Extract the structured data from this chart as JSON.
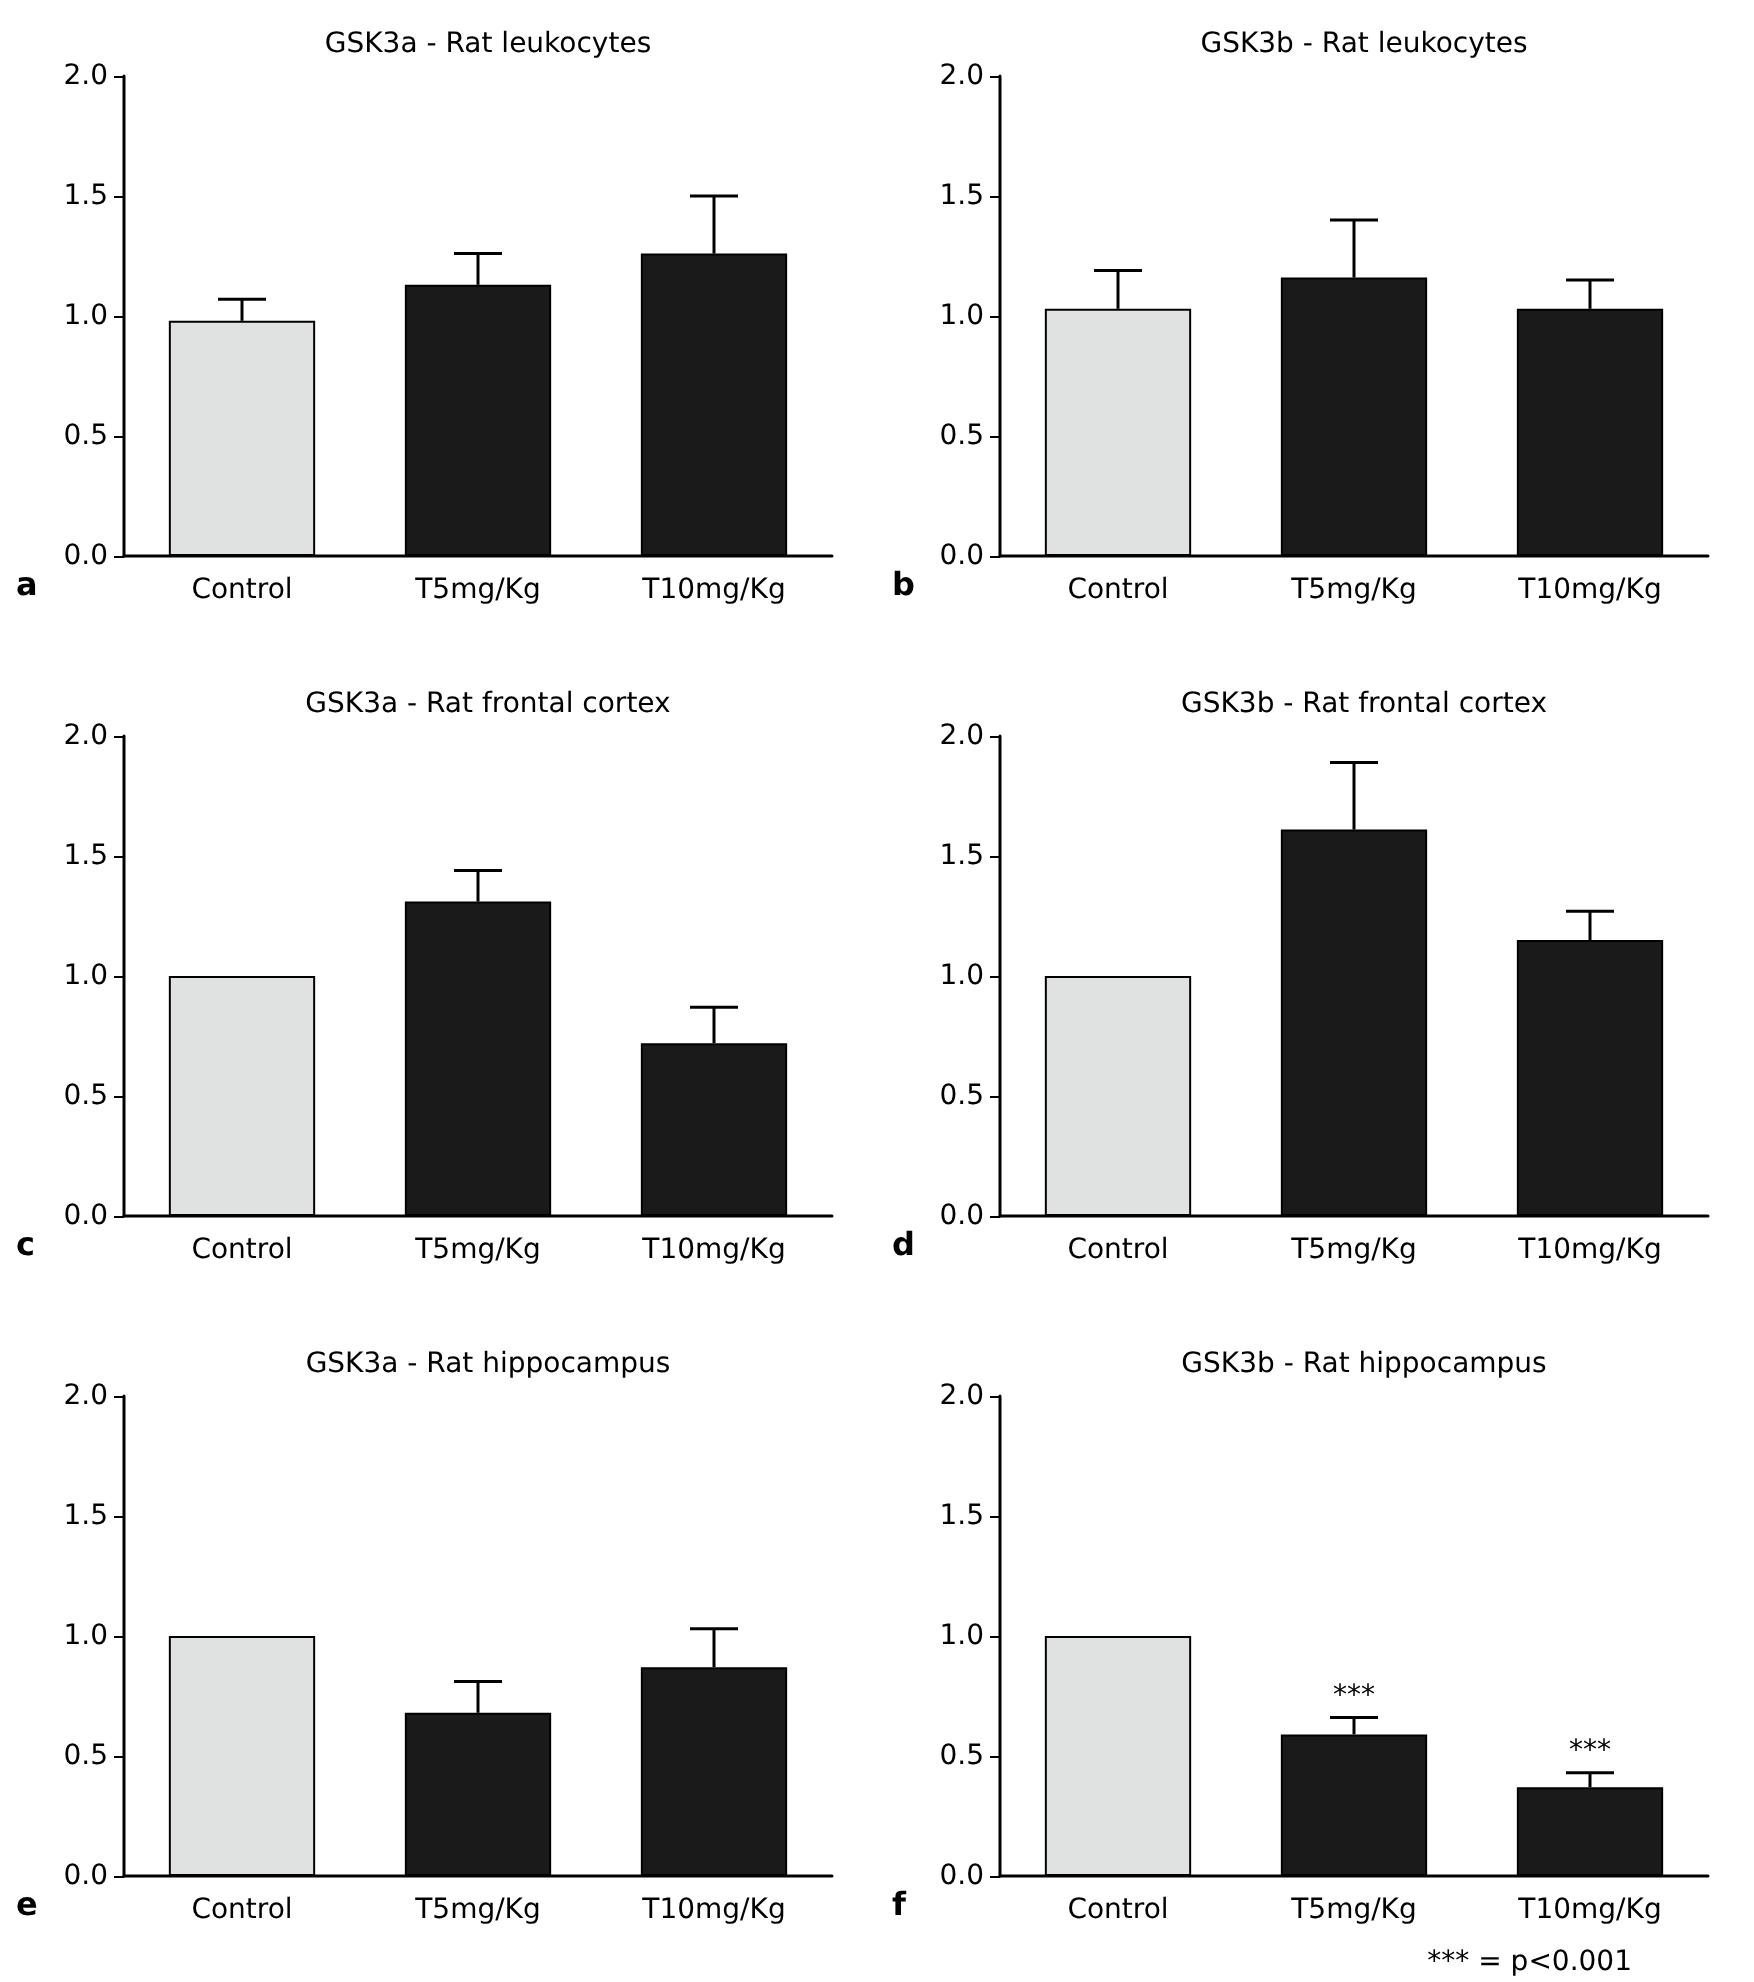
{
  "chart_data": [
    {
      "type": "bar",
      "title": "GSK3a - Rat leukocytes",
      "categories": [
        "Control",
        "T5mg/Kg",
        "T10mg/Kg"
      ],
      "values": [
        0.98,
        1.13,
        1.26
      ],
      "colors": [
        "#e0e2e2",
        "#1a1a1a",
        "#1a1a1a"
      ],
      "errors": [
        [
          0.98,
          1.07
        ],
        [
          1.13,
          1.26
        ],
        [
          1.26,
          1.5
        ]
      ],
      "ylim": [
        0,
        2
      ],
      "yticks": [
        {
          "value": 0,
          "label": "0.0"
        },
        {
          "value": 0.5,
          "label": "0.5"
        },
        {
          "value": 1,
          "label": "1.0"
        },
        {
          "value": 1.5,
          "label": "1.5"
        },
        {
          "value": 2,
          "label": "2.0"
        }
      ],
      "grid": false,
      "annotations": [
        "a"
      ]
    },
    {
      "type": "bar",
      "title": "GSK3b - Rat leukocytes",
      "categories": [
        "Control",
        "T5mg/Kg",
        "T10mg/Kg"
      ],
      "values": [
        1.03,
        1.16,
        1.03
      ],
      "colors": [
        "#e0e2e2",
        "#1a1a1a",
        "#1a1a1a"
      ],
      "errors": [
        [
          1.03,
          1.19
        ],
        [
          1.16,
          1.4
        ],
        [
          1.03,
          1.15
        ]
      ],
      "ylim": [
        0,
        2
      ],
      "yticks": [
        {
          "value": 0,
          "label": "0.0"
        },
        {
          "value": 0.5,
          "label": "0.5"
        },
        {
          "value": 1,
          "label": "1.0"
        },
        {
          "value": 1.5,
          "label": "1.5"
        },
        {
          "value": 2,
          "label": "2.0"
        }
      ],
      "grid": false,
      "annotations": [
        "b"
      ]
    },
    {
      "type": "bar",
      "title": "GSK3a - Rat frontal cortex",
      "categories": [
        "Control",
        "T5mg/Kg",
        "T10mg/Kg"
      ],
      "values": [
        1.0,
        1.31,
        0.72
      ],
      "colors": [
        "#e0e2e2",
        "#1a1a1a",
        "#1a1a1a"
      ],
      "errors": [
        null,
        [
          1.31,
          1.44
        ],
        [
          0.72,
          0.87
        ]
      ],
      "ylim": [
        0,
        2
      ],
      "yticks": [
        {
          "value": 0,
          "label": "0.0"
        },
        {
          "value": 0.5,
          "label": "0.5"
        },
        {
          "value": 1,
          "label": "1.0"
        },
        {
          "value": 1.5,
          "label": "1.5"
        },
        {
          "value": 2,
          "label": "2.0"
        }
      ],
      "grid": false,
      "annotations": [
        "c"
      ]
    },
    {
      "type": "bar",
      "title": "GSK3b - Rat frontal cortex",
      "categories": [
        "Control",
        "T5mg/Kg",
        "T10mg/Kg"
      ],
      "values": [
        1.0,
        1.61,
        1.15
      ],
      "colors": [
        "#e0e2e2",
        "#1a1a1a",
        "#1a1a1a"
      ],
      "errors": [
        null,
        [
          1.61,
          1.89
        ],
        [
          1.15,
          1.27
        ]
      ],
      "ylim": [
        0,
        2
      ],
      "yticks": [
        {
          "value": 0,
          "label": "0.0"
        },
        {
          "value": 0.5,
          "label": "0.5"
        },
        {
          "value": 1,
          "label": "1.0"
        },
        {
          "value": 1.5,
          "label": "1.5"
        },
        {
          "value": 2,
          "label": "2.0"
        }
      ],
      "grid": false,
      "annotations": [
        "d"
      ]
    },
    {
      "type": "bar",
      "title": "GSK3a - Rat hippocampus",
      "categories": [
        "Control",
        "T5mg/Kg",
        "T10mg/Kg"
      ],
      "values": [
        1.0,
        0.68,
        0.87
      ],
      "colors": [
        "#e0e2e2",
        "#1a1a1a",
        "#1a1a1a"
      ],
      "errors": [
        null,
        [
          0.68,
          0.81
        ],
        [
          0.87,
          1.03
        ]
      ],
      "ylim": [
        0,
        2
      ],
      "yticks": [
        {
          "value": 0,
          "label": "0.0"
        },
        {
          "value": 0.5,
          "label": "0.5"
        },
        {
          "value": 1,
          "label": "1.0"
        },
        {
          "value": 1.5,
          "label": "1.5"
        },
        {
          "value": 2,
          "label": "2.0"
        }
      ],
      "grid": false,
      "annotations": [
        "e"
      ]
    },
    {
      "type": "bar",
      "title": "GSK3b - Rat hippocampus",
      "categories": [
        "Control",
        "T5mg/Kg",
        "T10mg/Kg"
      ],
      "values": [
        1.0,
        0.59,
        0.37
      ],
      "colors": [
        "#e0e2e2",
        "#1a1a1a",
        "#1a1a1a"
      ],
      "errors": [
        null,
        [
          0.59,
          0.66
        ],
        [
          0.37,
          0.43
        ]
      ],
      "ylim": [
        0,
        2
      ],
      "yticks": [
        {
          "value": 0,
          "label": "0.0"
        },
        {
          "value": 0.5,
          "label": "0.5"
        },
        {
          "value": 1,
          "label": "1.0"
        },
        {
          "value": 1.5,
          "label": "1.5"
        },
        {
          "value": 2,
          "label": "2.0"
        }
      ],
      "grid": false,
      "annotations": [
        "f",
        "*** = p<0.001",
        {
          "text": "***",
          "x": "T5mg/Kg",
          "y": 0.66
        },
        {
          "text": "***",
          "x": "T10mg/Kg",
          "y": 0.43
        }
      ]
    }
  ]
}
